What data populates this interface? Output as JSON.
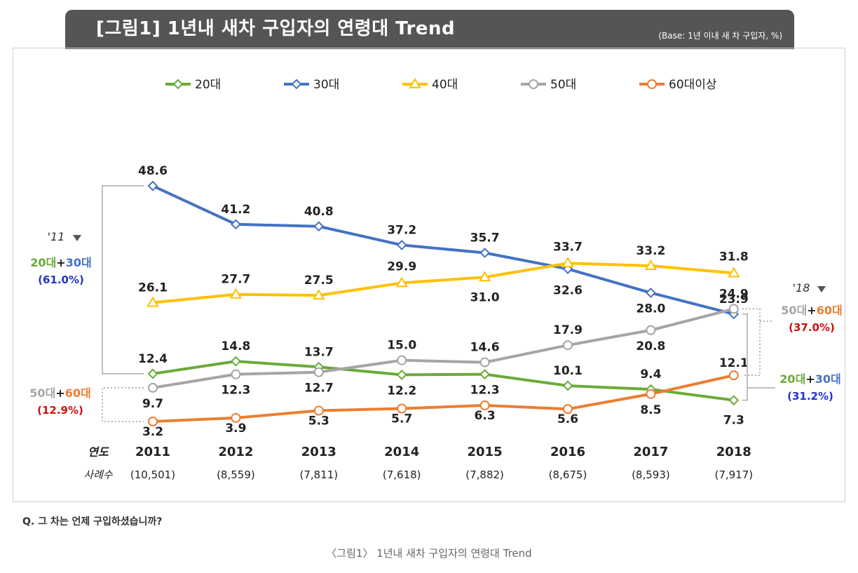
{
  "header": {
    "title": "[그림1] 1년내 새차 구입자의 연령대 Trend",
    "base_note": "(Base: 1년 이내 새 차 구입자, %)"
  },
  "question": "Q. 그 차는 언제 구입하셨습니까?",
  "caption": "〈그림1〉 1년내 새차 구입자의 연령대 Trend",
  "chart_data": {
    "type": "line",
    "title": "[그림1] 1년내 새차 구입자의 연령대 Trend",
    "x_label": "연도",
    "x": [
      "2011",
      "2012",
      "2013",
      "2014",
      "2015",
      "2016",
      "2017",
      "2018"
    ],
    "sample_label": "사례수",
    "sample_sizes": [
      "(10,501)",
      "(8,559)",
      "(7,811)",
      "(7,618)",
      "(7,882)",
      "(8,675)",
      "(8,593)",
      "(7,917)"
    ],
    "legend_position": "top",
    "grid": false,
    "ylim": [
      0,
      55
    ],
    "series": [
      {
        "name": "20대",
        "color": "#6aaa3a",
        "marker": "diamond",
        "values": [
          12.4,
          14.8,
          13.7,
          12.2,
          12.3,
          10.1,
          9.4,
          7.3
        ]
      },
      {
        "name": "30대",
        "color": "#4472c4",
        "marker": "diamond",
        "values": [
          48.6,
          41.2,
          40.8,
          37.2,
          35.7,
          32.6,
          28.0,
          23.9
        ]
      },
      {
        "name": "40대",
        "color": "#ffc000",
        "marker": "triangle",
        "values": [
          26.1,
          27.7,
          27.5,
          29.9,
          31.0,
          33.7,
          33.2,
          31.8
        ]
      },
      {
        "name": "50대",
        "color": "#a5a5a5",
        "marker": "circle",
        "values": [
          9.7,
          12.3,
          12.7,
          15.0,
          14.6,
          17.9,
          20.8,
          24.9
        ]
      },
      {
        "name": "60대이상",
        "color": "#ed7d31",
        "marker": "circle",
        "values": [
          3.2,
          3.9,
          5.3,
          5.7,
          6.3,
          5.6,
          8.5,
          12.1
        ]
      }
    ],
    "annotations": {
      "left": {
        "year": "'11",
        "young": {
          "part_a": "20대",
          "plus": "+",
          "part_b": "30대",
          "value": "(61.0%)"
        },
        "old": {
          "part_a": "50대",
          "plus": "+",
          "part_b": "60대",
          "value": "(12.9%)"
        }
      },
      "right": {
        "year": "'18",
        "old": {
          "part_a": "50대",
          "plus": "+",
          "part_b": "60대",
          "value": "(37.0%)"
        },
        "young": {
          "part_a": "20대",
          "plus": "+",
          "part_b": "30대",
          "value": "(31.2%)"
        }
      }
    },
    "label_colors": {
      "green": "#6aaa3a",
      "blue": "#4472c4",
      "gray": "#a5a5a5",
      "orange": "#ed7d31",
      "dark_blue": "#2233cc",
      "red": "#cc1111"
    }
  }
}
